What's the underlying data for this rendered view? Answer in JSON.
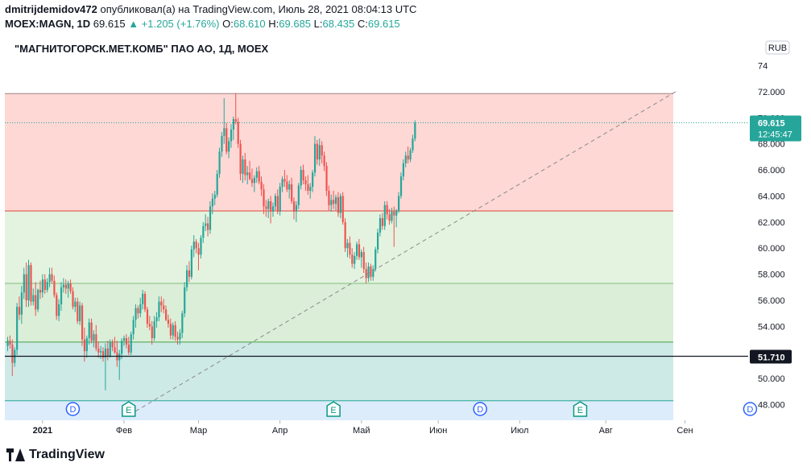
{
  "header": {
    "user": "dmitrijdemidov472",
    "published": "опубликовал(а) на TradingView.com, Июль 28, 2021 08:04:13 UTC",
    "symbol": "MOEX:MAGN, 1D",
    "last": "69.615",
    "change": "▲ +1.205 (+1.76%)",
    "o_label": "O:",
    "o_value": "68.610",
    "h_label": "H:",
    "h_value": "69.685",
    "l_label": "L:",
    "l_value": "68.435",
    "c_label": "C:",
    "c_value": "69.615"
  },
  "footer": {
    "brand": "TradingView"
  },
  "chart_data": {
    "type": "candlestick",
    "title": "\"МАГНИТОГОРСК.МЕТ.КОМБ\" ПАО АО, 1Д, MOEX",
    "currency": "RUB",
    "y_axis_labels": [
      "74",
      "72.000",
      "70.000",
      "68.000",
      "66.000",
      "64.000",
      "62.000",
      "60.000",
      "58.000",
      "56.000",
      "54.000",
      "52.000",
      "50.000",
      "48.000"
    ],
    "ylim": [
      46.8,
      74.4
    ],
    "x_axis_labels": [
      "2021",
      "Фев",
      "Мар",
      "Апр",
      "Май",
      "Июн",
      "Июл",
      "Авг",
      "Сен"
    ],
    "x_axis_bold": [
      "2021"
    ],
    "last_price": {
      "label": "69.615",
      "timer": "12:45:47",
      "value": 69.615,
      "color": "#26a69a"
    },
    "hline": {
      "label": "51.710",
      "value": 51.71
    },
    "zones": [
      {
        "from": 62.85,
        "to": 71.85,
        "color": "#fdd8d5"
      },
      {
        "from": 57.3,
        "to": 62.85,
        "color": "#e4f3e0"
      },
      {
        "from": 52.8,
        "to": 57.3,
        "color": "#dbeed8"
      },
      {
        "from": 48.3,
        "to": 52.8,
        "color": "#cdeae6"
      },
      {
        "from": 46.8,
        "to": 48.3,
        "color": "#dcecfb"
      }
    ],
    "zone_lines": [
      {
        "value": 71.85,
        "color": "#a08080"
      },
      {
        "value": 62.85,
        "color": "#e0453a"
      },
      {
        "value": 57.3,
        "color": "#7cbf7c"
      },
      {
        "value": 52.8,
        "color": "#46a046"
      },
      {
        "value": 48.3,
        "color": "#26a69a"
      }
    ],
    "trendline": {
      "from": {
        "bar": 55,
        "value": 47.5
      },
      "to": {
        "bar": 287,
        "value": 72.0
      }
    },
    "events": [
      {
        "bar": 28,
        "label": "D",
        "kind": "dividend"
      },
      {
        "bar": 52,
        "label": "E",
        "kind": "earnings"
      },
      {
        "bar": 140,
        "label": "E",
        "kind": "earnings"
      },
      {
        "bar": 203,
        "label": "D",
        "kind": "dividend"
      },
      {
        "bar": 246,
        "label": "E",
        "kind": "earnings"
      },
      {
        "bar": 319,
        "label": "D",
        "kind": "dividend"
      }
    ],
    "x_label_bars": [
      15,
      50,
      82,
      117,
      152,
      185,
      220,
      257,
      291
    ],
    "candles_ohlc": [
      [
        52.5,
        53.2,
        52.1,
        52.9
      ],
      [
        52.9,
        53.3,
        52.3,
        52.6
      ],
      [
        52.6,
        53.0,
        50.2,
        51.2
      ],
      [
        51.2,
        52.4,
        50.9,
        52.2
      ],
      [
        52.2,
        55.8,
        51.8,
        55.5
      ],
      [
        55.5,
        56.3,
        54.5,
        54.9
      ],
      [
        54.9,
        57.1,
        54.2,
        56.6
      ],
      [
        56.6,
        58.5,
        56.1,
        58.0
      ],
      [
        58.0,
        58.9,
        55.5,
        56.0
      ],
      [
        56.0,
        59.1,
        55.5,
        58.7
      ],
      [
        58.7,
        58.9,
        55.6,
        55.9
      ],
      [
        55.9,
        56.9,
        55.6,
        56.4
      ],
      [
        56.4,
        57.4,
        54.8,
        55.3
      ],
      [
        55.3,
        56.9,
        55.1,
        56.8
      ],
      [
        56.8,
        57.5,
        56.1,
        56.6
      ],
      [
        56.6,
        58.0,
        56.2,
        57.6
      ],
      [
        57.6,
        58.0,
        56.5,
        56.8
      ],
      [
        56.8,
        57.7,
        56.6,
        57.4
      ],
      [
        57.4,
        58.5,
        57.0,
        58.0
      ],
      [
        58.0,
        58.5,
        57.3,
        57.5
      ],
      [
        57.5,
        57.9,
        56.2,
        56.4
      ],
      [
        56.4,
        56.6,
        54.5,
        54.8
      ],
      [
        54.8,
        56.1,
        54.4,
        55.7
      ],
      [
        55.7,
        57.4,
        55.2,
        57.0
      ],
      [
        57.0,
        57.7,
        56.6,
        57.2
      ],
      [
        57.2,
        57.6,
        56.5,
        56.9
      ],
      [
        56.9,
        57.5,
        56.2,
        57.3
      ],
      [
        57.3,
        57.6,
        56.5,
        56.7
      ],
      [
        56.7,
        57.0,
        55.3,
        55.5
      ],
      [
        55.5,
        56.2,
        55.1,
        55.9
      ],
      [
        55.9,
        56.2,
        54.2,
        54.4
      ],
      [
        54.4,
        55.9,
        54.1,
        55.6
      ],
      [
        55.6,
        55.8,
        52.5,
        53.0
      ],
      [
        53.0,
        53.9,
        51.3,
        52.1
      ],
      [
        52.1,
        53.3,
        51.6,
        53.1
      ],
      [
        53.1,
        54.6,
        52.6,
        54.3
      ],
      [
        54.3,
        54.6,
        52.7,
        52.9
      ],
      [
        52.9,
        53.7,
        52.4,
        53.4
      ],
      [
        53.4,
        54.1,
        52.1,
        52.3
      ],
      [
        52.3,
        52.8,
        51.6,
        52.0
      ],
      [
        52.0,
        52.5,
        51.5,
        52.1
      ],
      [
        52.1,
        52.4,
        51.3,
        51.6
      ],
      [
        51.6,
        52.7,
        49.1,
        52.3
      ],
      [
        52.3,
        52.9,
        51.4,
        51.7
      ],
      [
        51.7,
        53.0,
        51.6,
        52.8
      ],
      [
        52.8,
        53.0,
        52.1,
        52.4
      ],
      [
        52.4,
        53.2,
        51.9,
        52.0
      ],
      [
        52.0,
        52.9,
        50.9,
        51.4
      ],
      [
        51.4,
        52.2,
        49.9,
        51.9
      ],
      [
        51.9,
        53.1,
        51.5,
        52.9
      ],
      [
        52.9,
        53.3,
        52.5,
        53.1
      ],
      [
        53.1,
        53.4,
        52.3,
        52.6
      ],
      [
        52.6,
        53.2,
        51.8,
        52.0
      ],
      [
        52.0,
        53.6,
        51.8,
        53.4
      ],
      [
        53.4,
        54.8,
        53.0,
        54.5
      ],
      [
        54.5,
        55.7,
        53.9,
        55.4
      ],
      [
        55.4,
        55.6,
        54.6,
        55.0
      ],
      [
        55.0,
        56.2,
        54.7,
        55.7
      ],
      [
        55.7,
        56.8,
        55.3,
        56.5
      ],
      [
        56.5,
        56.7,
        55.1,
        55.3
      ],
      [
        55.3,
        55.5,
        53.9,
        54.2
      ],
      [
        54.2,
        54.8,
        53.7,
        54.0
      ],
      [
        54.0,
        54.4,
        52.6,
        53.1
      ],
      [
        53.1,
        54.8,
        52.9,
        54.4
      ],
      [
        54.4,
        55.1,
        53.9,
        54.7
      ],
      [
        54.7,
        56.3,
        54.4,
        55.9
      ],
      [
        55.9,
        56.3,
        55.1,
        55.6
      ],
      [
        55.6,
        56.1,
        55.0,
        55.3
      ],
      [
        55.3,
        55.6,
        54.4,
        54.5
      ],
      [
        54.5,
        54.9,
        53.9,
        54.2
      ],
      [
        54.2,
        54.6,
        53.0,
        53.3
      ],
      [
        53.3,
        54.3,
        53.0,
        54.1
      ],
      [
        54.1,
        54.4,
        52.9,
        53.2
      ],
      [
        53.2,
        53.6,
        52.6,
        53.0
      ],
      [
        53.0,
        53.8,
        52.6,
        53.5
      ],
      [
        53.5,
        55.2,
        53.1,
        55.0
      ],
      [
        55.0,
        57.4,
        54.7,
        57.0
      ],
      [
        57.0,
        58.7,
        56.7,
        58.3
      ],
      [
        58.3,
        59.0,
        57.4,
        57.8
      ],
      [
        57.8,
        60.2,
        57.6,
        59.9
      ],
      [
        59.9,
        61.0,
        59.3,
        60.5
      ],
      [
        60.5,
        60.7,
        59.6,
        60.0
      ],
      [
        60.0,
        60.4,
        58.3,
        59.5
      ],
      [
        59.5,
        61.0,
        59.2,
        60.8
      ],
      [
        60.8,
        62.0,
        60.4,
        61.7
      ],
      [
        61.7,
        62.6,
        61.3,
        61.9
      ],
      [
        61.9,
        62.4,
        60.9,
        61.4
      ],
      [
        61.4,
        63.6,
        61.1,
        63.2
      ],
      [
        63.2,
        64.2,
        62.6,
        63.8
      ],
      [
        63.8,
        64.4,
        63.3,
        64.1
      ],
      [
        64.1,
        66.0,
        63.9,
        65.7
      ],
      [
        65.7,
        67.7,
        65.4,
        67.4
      ],
      [
        67.4,
        68.9,
        67.0,
        68.6
      ],
      [
        68.6,
        71.5,
        68.0,
        69.2
      ],
      [
        69.2,
        69.6,
        67.2,
        67.4
      ],
      [
        67.4,
        68.5,
        66.9,
        68.2
      ],
      [
        68.2,
        69.5,
        67.7,
        69.1
      ],
      [
        69.1,
        70.1,
        68.3,
        69.9
      ],
      [
        69.9,
        71.9,
        69.5,
        69.7
      ],
      [
        69.7,
        70.0,
        67.7,
        68.0
      ],
      [
        68.0,
        68.3,
        65.2,
        65.7
      ],
      [
        65.7,
        67.1,
        65.0,
        66.8
      ],
      [
        66.8,
        67.3,
        65.2,
        65.6
      ],
      [
        65.6,
        66.3,
        64.9,
        65.8
      ],
      [
        65.8,
        66.7,
        65.2,
        65.3
      ],
      [
        65.3,
        66.1,
        64.7,
        65.0
      ],
      [
        65.0,
        65.6,
        64.3,
        65.4
      ],
      [
        65.4,
        66.2,
        65.0,
        65.9
      ],
      [
        65.9,
        66.3,
        64.9,
        65.1
      ],
      [
        65.1,
        65.5,
        64.0,
        64.5
      ],
      [
        64.5,
        64.9,
        62.6,
        63.2
      ],
      [
        63.2,
        63.7,
        62.4,
        63.0
      ],
      [
        63.0,
        63.8,
        62.3,
        63.6
      ],
      [
        63.6,
        64.0,
        61.9,
        62.8
      ],
      [
        62.8,
        63.5,
        62.4,
        63.2
      ],
      [
        63.2,
        64.2,
        62.9,
        64.0
      ],
      [
        64.0,
        64.5,
        62.6,
        62.8
      ],
      [
        62.8,
        65.0,
        62.5,
        64.7
      ],
      [
        64.7,
        65.5,
        64.3,
        65.3
      ],
      [
        65.3,
        66.0,
        64.7,
        65.1
      ],
      [
        65.1,
        65.6,
        64.3,
        64.5
      ],
      [
        64.5,
        65.2,
        63.8,
        64.9
      ],
      [
        64.9,
        65.4,
        63.4,
        63.6
      ],
      [
        63.6,
        63.9,
        62.2,
        62.8
      ],
      [
        62.8,
        63.6,
        62.0,
        63.3
      ],
      [
        63.3,
        65.0,
        63.0,
        64.8
      ],
      [
        64.8,
        66.3,
        64.5,
        66.0
      ],
      [
        66.0,
        66.4,
        64.9,
        65.2
      ],
      [
        65.2,
        65.5,
        64.4,
        64.9
      ],
      [
        64.9,
        65.6,
        64.1,
        64.4
      ],
      [
        64.4,
        65.0,
        63.8,
        64.7
      ],
      [
        64.7,
        66.0,
        64.3,
        65.8
      ],
      [
        65.8,
        68.6,
        65.5,
        68.0
      ],
      [
        68.0,
        68.3,
        66.4,
        66.8
      ],
      [
        66.8,
        68.4,
        66.3,
        67.9
      ],
      [
        67.9,
        68.2,
        66.5,
        67.1
      ],
      [
        67.1,
        67.4,
        65.9,
        66.3
      ],
      [
        66.3,
        66.6,
        64.0,
        64.4
      ],
      [
        64.4,
        64.8,
        62.9,
        63.3
      ],
      [
        63.3,
        64.1,
        62.8,
        63.7
      ],
      [
        63.7,
        64.4,
        63.0,
        63.4
      ],
      [
        63.4,
        64.1,
        62.9,
        63.9
      ],
      [
        63.9,
        64.3,
        62.4,
        62.7
      ],
      [
        62.7,
        64.2,
        62.3,
        64.0
      ],
      [
        64.0,
        64.3,
        61.8,
        62.0
      ],
      [
        62.0,
        62.3,
        59.7,
        60.0
      ],
      [
        60.0,
        60.7,
        59.3,
        60.4
      ],
      [
        60.4,
        60.9,
        59.2,
        59.5
      ],
      [
        59.5,
        60.0,
        58.5,
        58.8
      ],
      [
        58.8,
        59.7,
        58.4,
        59.4
      ],
      [
        59.4,
        60.5,
        59.1,
        60.3
      ],
      [
        60.3,
        60.7,
        59.1,
        59.3
      ],
      [
        59.3,
        59.9,
        58.5,
        59.7
      ],
      [
        59.7,
        60.1,
        58.1,
        58.4
      ],
      [
        58.4,
        58.9,
        57.3,
        57.7
      ],
      [
        57.7,
        58.9,
        57.4,
        58.6
      ],
      [
        58.6,
        58.8,
        57.5,
        57.8
      ],
      [
        57.8,
        58.7,
        57.5,
        58.4
      ],
      [
        58.4,
        60.1,
        58.2,
        59.9
      ],
      [
        59.9,
        61.5,
        59.6,
        61.2
      ],
      [
        61.2,
        62.6,
        60.9,
        62.3
      ],
      [
        62.3,
        62.7,
        61.4,
        61.7
      ],
      [
        61.7,
        63.6,
        61.4,
        63.3
      ],
      [
        63.3,
        63.6,
        62.2,
        62.6
      ],
      [
        62.6,
        63.0,
        61.8,
        62.1
      ],
      [
        62.1,
        63.1,
        61.9,
        62.8
      ],
      [
        62.8,
        63.2,
        60.1,
        62.5
      ],
      [
        62.5,
        63.0,
        61.6,
        62.9
      ],
      [
        62.9,
        64.3,
        62.7,
        64.0
      ],
      [
        64.0,
        65.8,
        63.8,
        65.5
      ],
      [
        65.5,
        66.8,
        65.2,
        66.5
      ],
      [
        66.5,
        67.4,
        66.2,
        67.1
      ],
      [
        67.1,
        67.8,
        66.5,
        66.8
      ],
      [
        66.8,
        67.7,
        66.6,
        67.5
      ],
      [
        67.5,
        68.7,
        67.3,
        68.4
      ],
      [
        68.4,
        69.8,
        68.2,
        69.6
      ]
    ]
  }
}
